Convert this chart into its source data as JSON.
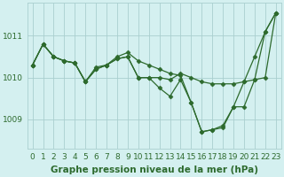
{
  "series": [
    [
      1010.3,
      1010.8,
      1010.5,
      1010.4,
      1010.35,
      1009.9,
      1010.2,
      1010.3,
      1010.45,
      1010.5,
      1010.0,
      1010.0,
      1010.0,
      1009.95,
      1010.1,
      1010.0,
      1009.9,
      1009.85,
      1009.85,
      1009.85,
      1009.9,
      1009.95,
      1010.0,
      1011.55
    ],
    [
      1010.3,
      1010.8,
      1010.5,
      1010.4,
      1010.35,
      1009.9,
      1010.2,
      1010.3,
      1010.45,
      1010.5,
      1010.0,
      1010.0,
      1009.75,
      1009.55,
      1009.95,
      1009.4,
      1008.7,
      1008.75,
      1008.8,
      1009.3,
      1009.9,
      1010.5,
      1011.1,
      1011.55
    ],
    [
      1010.3,
      1010.8,
      1010.5,
      1010.4,
      1010.35,
      1009.9,
      1010.25,
      1010.3,
      1010.5,
      1010.6,
      1010.4,
      1010.3,
      1010.2,
      1010.1,
      1010.05,
      1009.4,
      1008.7,
      1008.75,
      1008.85,
      1009.3,
      1009.3,
      1009.95,
      1011.1,
      1011.55
    ]
  ],
  "x": [
    0,
    1,
    2,
    3,
    4,
    5,
    6,
    7,
    8,
    9,
    10,
    11,
    12,
    13,
    14,
    15,
    16,
    17,
    18,
    19,
    20,
    21,
    22,
    23
  ],
  "line_color": "#2d6a2d",
  "marker": "D",
  "marker_size": 2.5,
  "bg_color": "#d4f0f0",
  "grid_color": "#aacfcf",
  "xlabel": "Graphe pression niveau de la mer (hPa)",
  "xlabel_fontsize": 7.5,
  "tick_label_fontsize": 6.5,
  "yticks": [
    1009,
    1010,
    1011
  ],
  "ylim": [
    1008.3,
    1011.8
  ],
  "xlim": [
    -0.5,
    23.5
  ],
  "xticks": [
    0,
    1,
    2,
    3,
    4,
    5,
    6,
    7,
    8,
    9,
    10,
    11,
    12,
    13,
    14,
    15,
    16,
    17,
    18,
    19,
    20,
    21,
    22,
    23
  ]
}
